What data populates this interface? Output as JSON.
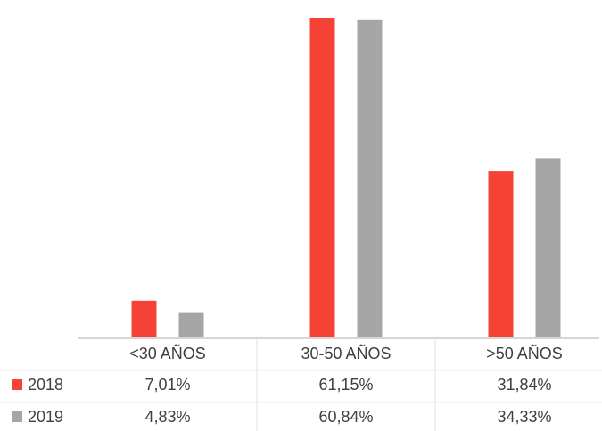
{
  "chart_data": {
    "type": "bar",
    "categories": [
      "<30 AÑOS",
      "30-50 AÑOS",
      ">50 AÑOS"
    ],
    "series": [
      {
        "name": "2018",
        "values": [
          7.01,
          61.15,
          31.84
        ],
        "labels": [
          "7,01%",
          "61,15%",
          "31,84%"
        ],
        "color": "#f44336"
      },
      {
        "name": "2019",
        "values": [
          4.83,
          60.84,
          34.33
        ],
        "labels": [
          "4,83%",
          "60,84%",
          "34,33%"
        ],
        "color": "#a6a6a6"
      }
    ],
    "ylim": [
      0,
      62
    ],
    "grid": false,
    "legend": "data-table",
    "data_table": true
  }
}
